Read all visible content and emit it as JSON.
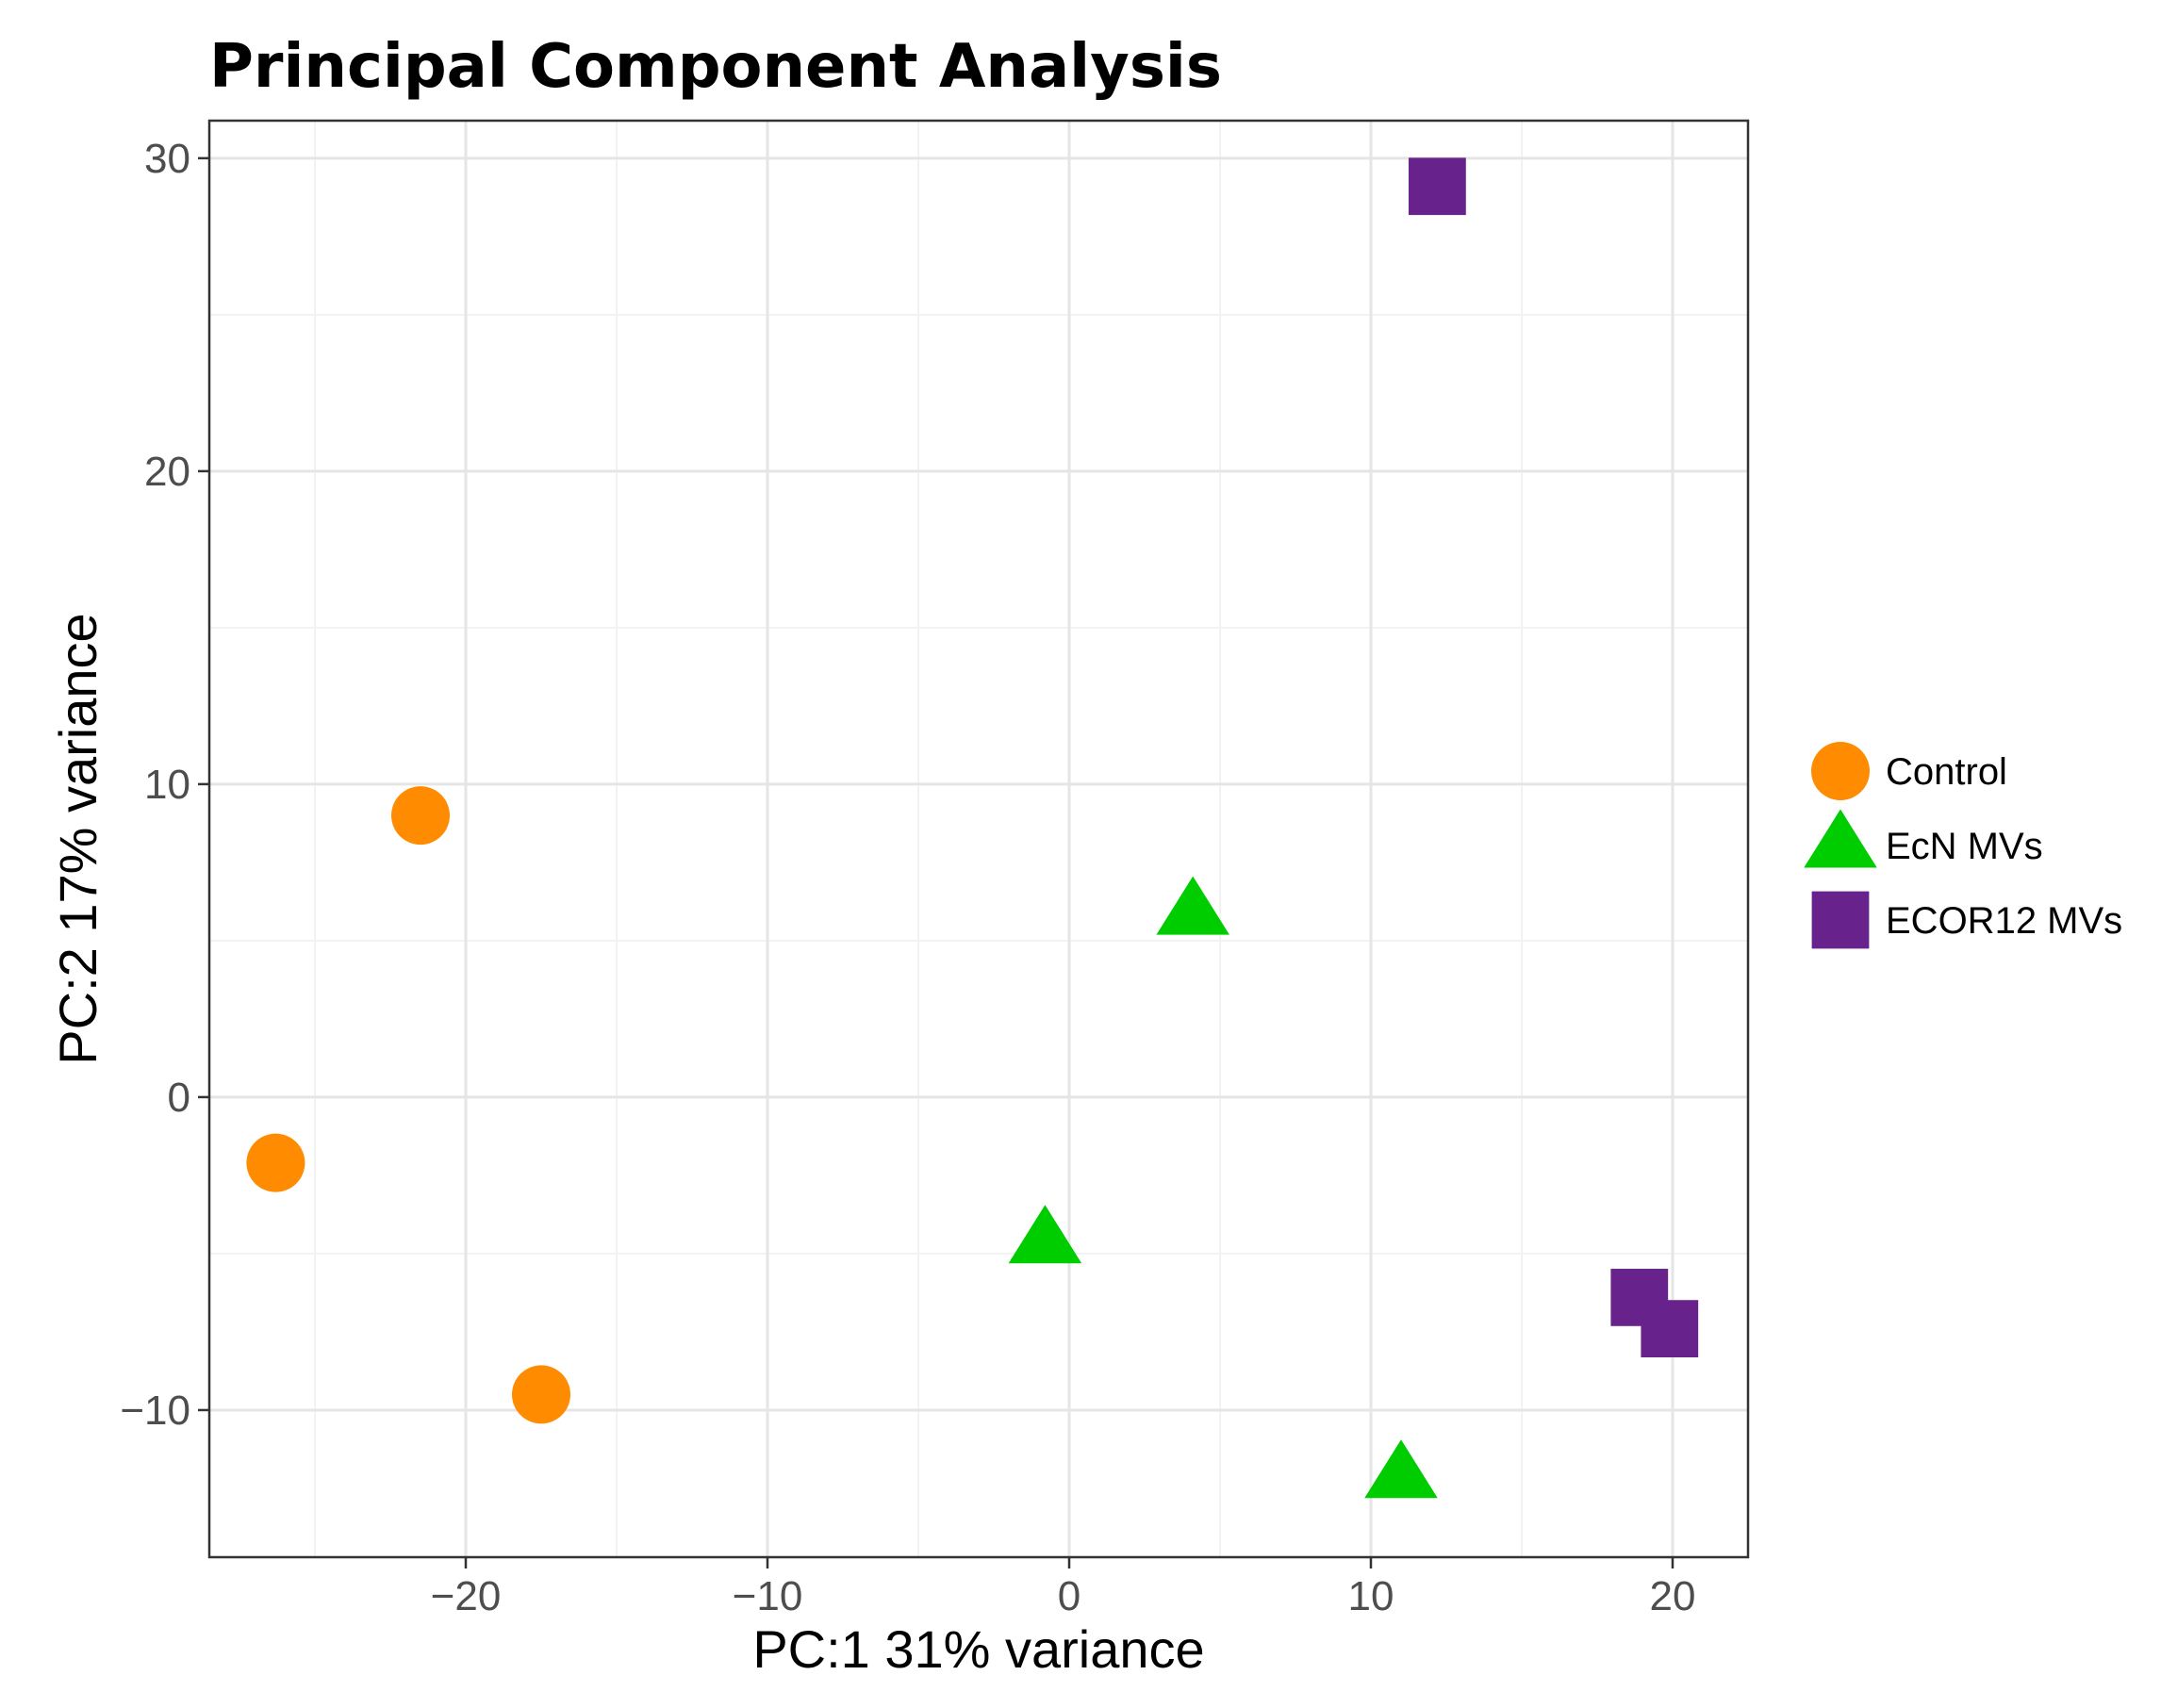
{
  "chart_data": {
    "type": "scatter",
    "title": "Principal Component Analysis",
    "xlabel": "PC:1 31% variance",
    "ylabel": "PC:2 17% variance",
    "xlim": [
      -28.5,
      22.5
    ],
    "ylim": [
      -14.7,
      31.2
    ],
    "x_ticks": [
      -20,
      -10,
      0,
      10,
      20
    ],
    "x_tick_labels": [
      "−20",
      "−10",
      "0",
      "10",
      "20"
    ],
    "y_ticks": [
      -10,
      0,
      10,
      20,
      30
    ],
    "y_tick_labels": [
      "−10",
      "0",
      "10",
      "20",
      "30"
    ],
    "grid": true,
    "legend_position": "right",
    "series": [
      {
        "name": "Control",
        "shape": "circle",
        "color": "#ff8c00",
        "points": [
          {
            "x": -21.5,
            "y": 9.0
          },
          {
            "x": -26.3,
            "y": -2.1
          },
          {
            "x": -17.5,
            "y": -9.5
          }
        ]
      },
      {
        "name": "EcN MVs",
        "shape": "triangle",
        "color": "#00cd00",
        "points": [
          {
            "x": 4.1,
            "y": 5.9
          },
          {
            "x": -0.8,
            "y": -4.6
          },
          {
            "x": 11.0,
            "y": -12.1
          }
        ]
      },
      {
        "name": "ECOR12 MVs",
        "shape": "square",
        "color": "#68228b",
        "points": [
          {
            "x": 12.2,
            "y": 29.1
          },
          {
            "x": 18.9,
            "y": -6.4
          },
          {
            "x": 19.9,
            "y": -7.4
          }
        ]
      }
    ]
  }
}
